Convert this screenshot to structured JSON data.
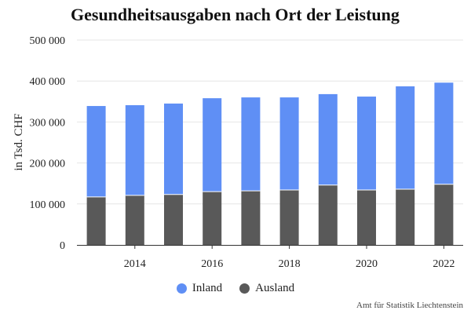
{
  "chart_data": {
    "type": "bar",
    "stacked": true,
    "title": "Gesundheitsausgaben nach Ort der Leistung",
    "ylabel": "in Tsd. CHF",
    "xlabel": "",
    "categories": [
      "2013",
      "2014",
      "2015",
      "2016",
      "2017",
      "2018",
      "2019",
      "2020",
      "2021",
      "2022"
    ],
    "x_tick_labels": [
      "2014",
      "2016",
      "2018",
      "2020",
      "2022"
    ],
    "y_tick_labels": [
      "0",
      "100 000",
      "200 000",
      "300 000",
      "400 000",
      "500 000"
    ],
    "ylim": [
      0,
      500000
    ],
    "grid": true,
    "legend_position": "bottom",
    "series": [
      {
        "name": "Ausland",
        "color": "#595959",
        "values": [
          117000,
          121000,
          123000,
          130000,
          132000,
          134000,
          146000,
          134000,
          136000,
          148000
        ]
      },
      {
        "name": "Inland",
        "color": "#5f8ff5",
        "values": [
          222000,
          220000,
          222000,
          228000,
          228000,
          226000,
          222000,
          228000,
          251000,
          248000
        ]
      }
    ]
  },
  "legend": {
    "items": [
      {
        "label": "Inland",
        "color": "#5f8ff5"
      },
      {
        "label": "Ausland",
        "color": "#595959"
      }
    ]
  },
  "source": "Amt für Statistik Liechtenstein"
}
